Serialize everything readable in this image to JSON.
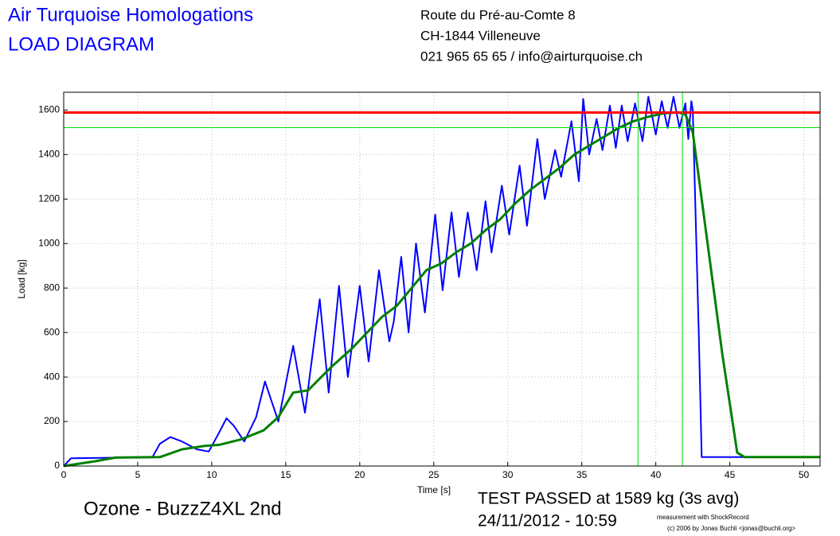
{
  "header": {
    "title": "Air Turquoise Homologations",
    "subtitle": "LOAD DIAGRAM",
    "address": [
      "Route du Pré-au-Comte 8",
      "CH-1844 Villeneuve",
      "021 965 65 65 / info@airturquoise.ch"
    ]
  },
  "chart_data": {
    "type": "line",
    "x_label": "Time [s]",
    "y_label": "Load [kg]",
    "xlim": [
      0,
      51.1
    ],
    "xticks": [
      0,
      5,
      10,
      15,
      20,
      25,
      30,
      35,
      40,
      45,
      50
    ],
    "ylim": [
      0,
      1680
    ],
    "yticks": [
      0,
      200,
      400,
      600,
      800,
      1000,
      1200,
      1400,
      1600
    ],
    "grid": true,
    "series": [
      {
        "color": "#0000ff",
        "x": [
          0,
          0.5,
          4,
          6,
          6.5,
          7.2,
          8,
          9,
          9.8,
          10.5,
          11,
          11.5,
          12.2,
          13,
          13.6,
          14.5,
          15.5,
          16.3,
          17.3,
          17.9,
          18.6,
          19.2,
          20,
          20.6,
          21.3,
          22,
          22.3,
          22.8,
          23.3,
          23.8,
          24.4,
          25.1,
          25.6,
          26.2,
          26.7,
          27.3,
          27.9,
          28.5,
          28.9,
          29.6,
          30.1,
          30.8,
          31.3,
          32,
          32.5,
          33.2,
          33.6,
          34.3,
          34.8,
          35.1,
          35.5,
          36,
          36.4,
          36.9,
          37.3,
          37.7,
          38.1,
          38.6,
          39.1,
          39.5,
          40,
          40.4,
          40.8,
          41.2,
          41.6,
          42,
          42.2,
          42.4,
          42.5,
          42.9,
          43.1,
          45,
          51.1
        ],
        "values": [
          0,
          35,
          38,
          40,
          100,
          130,
          110,
          75,
          65,
          150,
          215,
          180,
          110,
          220,
          380,
          200,
          540,
          240,
          750,
          330,
          810,
          400,
          810,
          470,
          880,
          560,
          650,
          940,
          600,
          1000,
          690,
          1130,
          790,
          1140,
          850,
          1140,
          880,
          1190,
          960,
          1260,
          1040,
          1350,
          1080,
          1470,
          1200,
          1420,
          1300,
          1550,
          1280,
          1650,
          1400,
          1560,
          1420,
          1620,
          1430,
          1620,
          1460,
          1630,
          1460,
          1660,
          1490,
          1640,
          1520,
          1660,
          1520,
          1630,
          1470,
          1640,
          1600,
          600,
          40,
          40,
          40
        ]
      },
      {
        "color": "#008000",
        "x": [
          0,
          2,
          3.5,
          6.5,
          8,
          9.5,
          10.5,
          12,
          13.5,
          14.5,
          15.5,
          16.5,
          18,
          19.5,
          20.5,
          21.5,
          22.5,
          23.5,
          24.5,
          25.5,
          26.5,
          27.5,
          28.5,
          29.5,
          30.5,
          31.5,
          32.5,
          33.5,
          34.5,
          35.5,
          36.5,
          37.5,
          38.5,
          39.5,
          40.5,
          41.5,
          42,
          42.5,
          43.5,
          44.5,
          45.5,
          46,
          51.1
        ],
        "values": [
          0,
          20,
          38,
          40,
          75,
          90,
          95,
          120,
          160,
          220,
          330,
          340,
          440,
          530,
          600,
          670,
          720,
          800,
          880,
          910,
          960,
          1000,
          1060,
          1110,
          1180,
          1240,
          1290,
          1340,
          1400,
          1440,
          1480,
          1520,
          1550,
          1570,
          1585,
          1590,
          1580,
          1500,
          1000,
          500,
          60,
          40,
          40
        ]
      }
    ],
    "reference_lines": [
      {
        "value": 1589,
        "color": "#ff0000"
      },
      {
        "value": 1521,
        "color": "#00dd00"
      }
    ],
    "window": {
      "x": [
        38.8,
        41.8
      ],
      "color": "#00dd00"
    }
  },
  "footer": {
    "model": "Ozone - BuzzZ4XL 2nd",
    "result": "TEST PASSED at 1589 kg (3s avg)",
    "date": "24/11/2012 - 10:59",
    "credit": [
      "measurement with ShockRecord",
      "(c) 2006 by Jonas Buchli <jonas@buchli.org>"
    ]
  }
}
